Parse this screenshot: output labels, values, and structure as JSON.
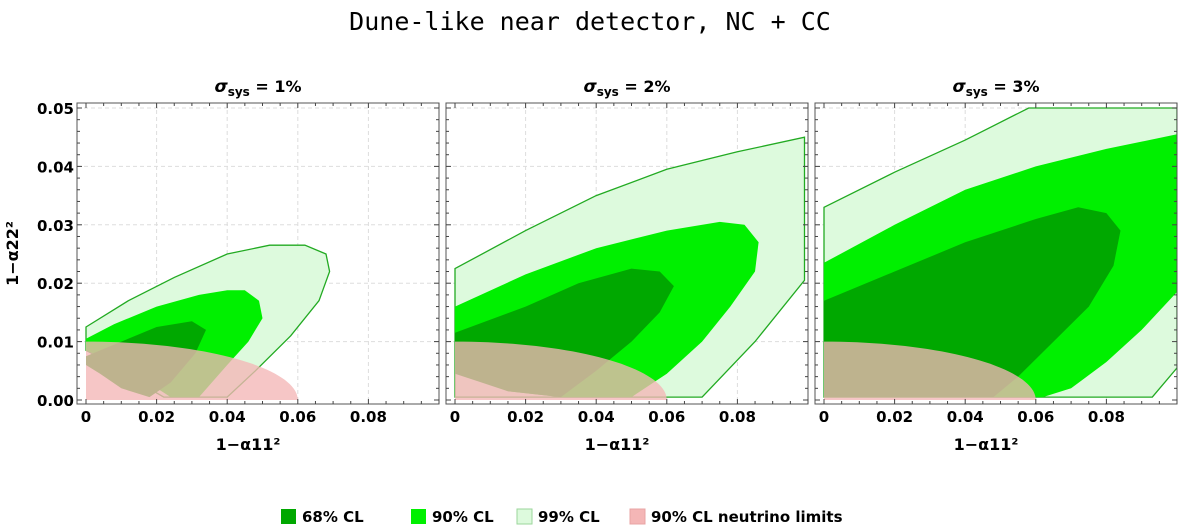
{
  "title": "Dune-like near detector, NC + CC",
  "chart_data": {
    "type": "area",
    "title": "Dune-like near detector, NC + CC",
    "xlabel": "1−α11²",
    "ylabel": "1−α22²",
    "xlim": [
      0,
      0.1
    ],
    "ylim": [
      0,
      0.05
    ],
    "xticks": [
      0,
      0.02,
      0.04,
      0.06,
      0.08
    ],
    "yticks": [
      0,
      0.01,
      0.02,
      0.03,
      0.04,
      0.05
    ],
    "grid": true,
    "legend_position": "bottom",
    "series": [
      {
        "name": "68% CL",
        "color": "#00a800"
      },
      {
        "name": "90% CL",
        "color": "#00f000"
      },
      {
        "name": "99% CL",
        "color": "#ddfadd"
      },
      {
        "name": "90% CL neutrino limits",
        "color": "#f4b6b6"
      }
    ],
    "neutrino_limits": {
      "x_max": 0.06,
      "y_max": 0.01
    },
    "panels": [
      {
        "title": "σsys = 1%",
        "sigma_label": "σ",
        "sub_label": "sys",
        "value_label": " = 1%",
        "regions": {
          "cl99": [
            [
              0,
              0.0125
            ],
            [
              0.012,
              0.017
            ],
            [
              0.025,
              0.021
            ],
            [
              0.04,
              0.025
            ],
            [
              0.052,
              0.0265
            ],
            [
              0.062,
              0.0265
            ],
            [
              0.068,
              0.025
            ],
            [
              0.069,
              0.022
            ],
            [
              0.066,
              0.017
            ],
            [
              0.058,
              0.011
            ],
            [
              0.048,
              0.005
            ],
            [
              0.04,
              0.0005
            ],
            [
              0.033,
              0.0005
            ],
            [
              0.022,
              0.0005
            ],
            [
              0.015,
              0.003
            ],
            [
              0.008,
              0.006
            ],
            [
              0,
              0.0085
            ]
          ],
          "cl90": [
            [
              0,
              0.0105
            ],
            [
              0.008,
              0.013
            ],
            [
              0.02,
              0.016
            ],
            [
              0.032,
              0.018
            ],
            [
              0.04,
              0.0188
            ],
            [
              0.045,
              0.0188
            ],
            [
              0.049,
              0.017
            ],
            [
              0.05,
              0.014
            ],
            [
              0.046,
              0.01
            ],
            [
              0.04,
              0.006
            ],
            [
              0.032,
              0.0005
            ],
            [
              0.024,
              0.0005
            ],
            [
              0.015,
              0.004
            ],
            [
              0.006,
              0.007
            ],
            [
              0,
              0.0085
            ]
          ],
          "cl68": [
            [
              0,
              0.0075
            ],
            [
              0.01,
              0.01
            ],
            [
              0.02,
              0.0125
            ],
            [
              0.03,
              0.0135
            ],
            [
              0.034,
              0.012
            ],
            [
              0.031,
              0.008
            ],
            [
              0.024,
              0.003
            ],
            [
              0.018,
              0.0005
            ],
            [
              0.01,
              0.002
            ],
            [
              0.004,
              0.0045
            ],
            [
              0,
              0.006
            ]
          ]
        }
      },
      {
        "title": "σsys = 2%",
        "sigma_label": "σ",
        "sub_label": "sys",
        "value_label": " = 2%",
        "regions": {
          "cl99": [
            [
              0,
              0.0225
            ],
            [
              0.02,
              0.029
            ],
            [
              0.04,
              0.035
            ],
            [
              0.06,
              0.0395
            ],
            [
              0.08,
              0.0425
            ],
            [
              0.099,
              0.045
            ],
            [
              0.099,
              0.0205
            ],
            [
              0.085,
              0.01
            ],
            [
              0.07,
              0.0005
            ],
            [
              0.06,
              0.0005
            ],
            [
              0.04,
              0.0005
            ],
            [
              0.01,
              0.0005
            ],
            [
              0,
              0.0005
            ]
          ],
          "cl90": [
            [
              0,
              0.016
            ],
            [
              0.02,
              0.0215
            ],
            [
              0.04,
              0.026
            ],
            [
              0.06,
              0.029
            ],
            [
              0.075,
              0.0305
            ],
            [
              0.082,
              0.03
            ],
            [
              0.086,
              0.027
            ],
            [
              0.085,
              0.022
            ],
            [
              0.078,
              0.016
            ],
            [
              0.07,
              0.01
            ],
            [
              0.06,
              0.0045
            ],
            [
              0.05,
              0.0005
            ],
            [
              0.03,
              0.0005
            ],
            [
              0.015,
              0.0015
            ],
            [
              0,
              0.0055
            ]
          ],
          "cl68": [
            [
              0,
              0.0115
            ],
            [
              0.02,
              0.016
            ],
            [
              0.035,
              0.02
            ],
            [
              0.05,
              0.0225
            ],
            [
              0.058,
              0.022
            ],
            [
              0.062,
              0.0195
            ],
            [
              0.058,
              0.015
            ],
            [
              0.05,
              0.01
            ],
            [
              0.04,
              0.005
            ],
            [
              0.03,
              0.0005
            ],
            [
              0.015,
              0.0015
            ],
            [
              0,
              0.0045
            ]
          ]
        }
      },
      {
        "title": "σsys = 3%",
        "sigma_label": "σ",
        "sub_label": "sys",
        "value_label": " = 3%",
        "regions": {
          "cl99": [
            [
              0,
              0.033
            ],
            [
              0.02,
              0.039
            ],
            [
              0.04,
              0.0445
            ],
            [
              0.058,
              0.05
            ],
            [
              0.1,
              0.05
            ],
            [
              0.1,
              0.0055
            ],
            [
              0.093,
              0.0005
            ],
            [
              0.0865,
              0.0005
            ],
            [
              0.0,
              0.0005
            ]
          ],
          "cl90": [
            [
              0,
              0.0235
            ],
            [
              0.02,
              0.03
            ],
            [
              0.04,
              0.036
            ],
            [
              0.06,
              0.04
            ],
            [
              0.08,
              0.043
            ],
            [
              0.1,
              0.0455
            ],
            [
              0.1,
              0.0185
            ],
            [
              0.09,
              0.012
            ],
            [
              0.08,
              0.0065
            ],
            [
              0.07,
              0.002
            ],
            [
              0.062,
              0.0005
            ],
            [
              0.0,
              0.0005
            ]
          ],
          "cl68": [
            [
              0,
              0.017
            ],
            [
              0.02,
              0.022
            ],
            [
              0.04,
              0.027
            ],
            [
              0.06,
              0.031
            ],
            [
              0.072,
              0.033
            ],
            [
              0.08,
              0.032
            ],
            [
              0.084,
              0.029
            ],
            [
              0.082,
              0.023
            ],
            [
              0.075,
              0.016
            ],
            [
              0.065,
              0.01
            ],
            [
              0.055,
              0.004
            ],
            [
              0.048,
              0.0005
            ],
            [
              0.0,
              0.0005
            ]
          ]
        }
      }
    ]
  }
}
